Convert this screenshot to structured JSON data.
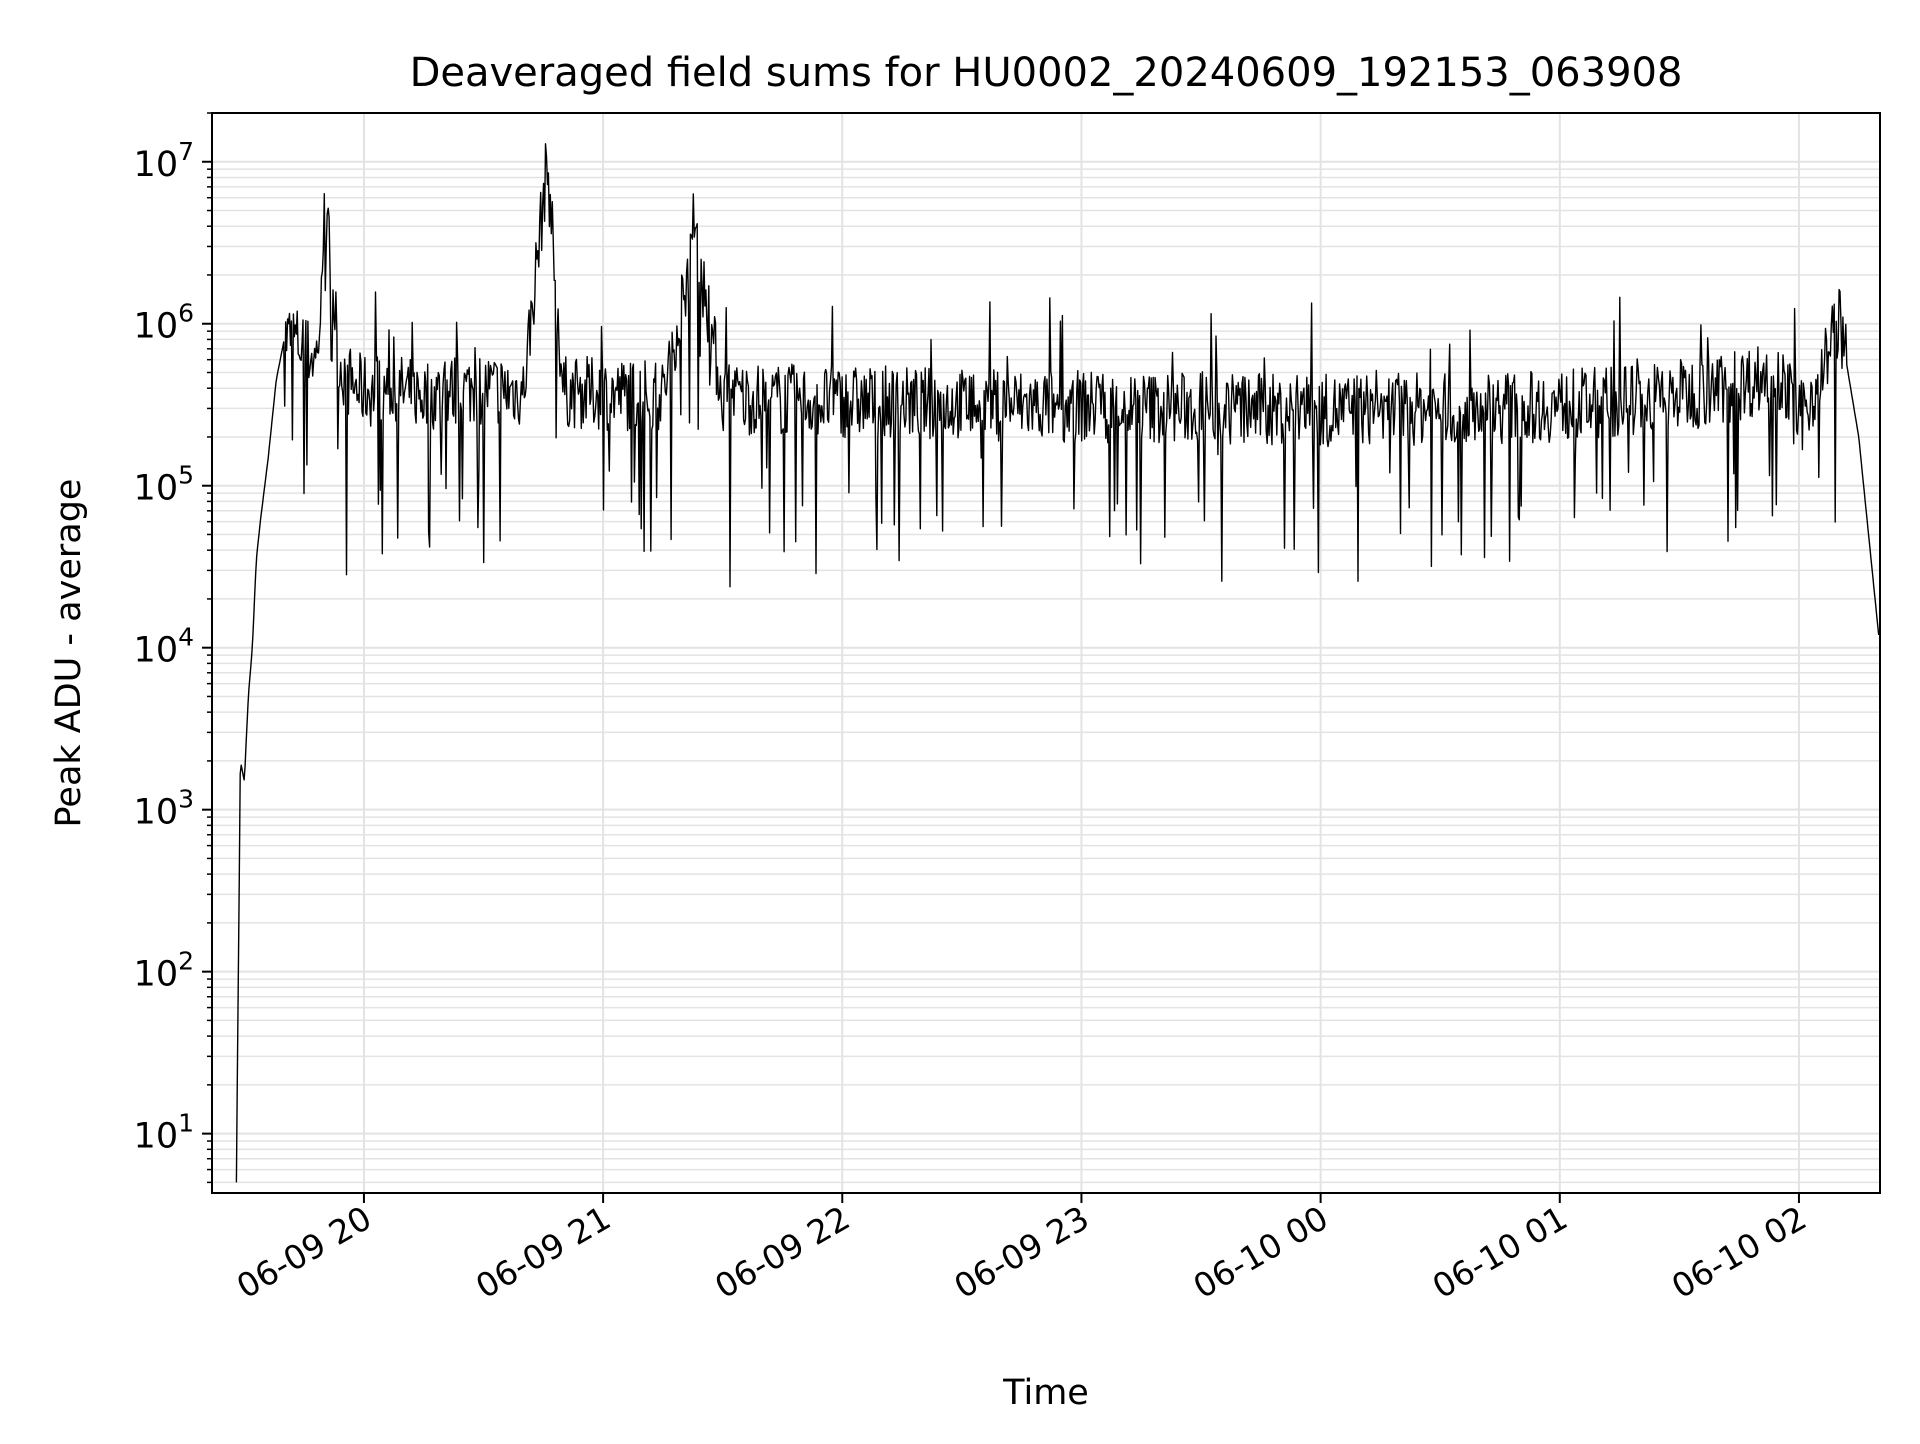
{
  "chart_data": {
    "type": "line",
    "title": "Deaveraged field sums for HU0002_20240609_192153_063908",
    "xlabel": "Time",
    "ylabel": "Peak ADU - average",
    "yscale": "log",
    "ylim": [
      4.3,
      20000000
    ],
    "xlim": [
      "2024-06-09 19:21:53",
      "2024-06-10 02:20:20"
    ],
    "grid": "major and minor",
    "x_ticks": [
      {
        "label": "06-09 20",
        "value": "2024-06-09 20:00"
      },
      {
        "label": "06-09 21",
        "value": "2024-06-09 21:00"
      },
      {
        "label": "06-09 22",
        "value": "2024-06-09 22:00"
      },
      {
        "label": "06-09 23",
        "value": "2024-06-09 23:00"
      },
      {
        "label": "06-10 00",
        "value": "2024-06-10 00:00"
      },
      {
        "label": "06-10 01",
        "value": "2024-06-10 01:00"
      },
      {
        "label": "06-10 02",
        "value": "2024-06-10 02:00"
      }
    ],
    "y_ticks": [
      {
        "base": "10",
        "exp": "1",
        "value": 10
      },
      {
        "base": "10",
        "exp": "2",
        "value": 100
      },
      {
        "base": "10",
        "exp": "3",
        "value": 1000
      },
      {
        "base": "10",
        "exp": "4",
        "value": 10000
      },
      {
        "base": "10",
        "exp": "5",
        "value": 100000
      },
      {
        "base": "10",
        "exp": "6",
        "value": 1000000
      },
      {
        "base": "10",
        "exp": "7",
        "value": 10000000
      }
    ],
    "line_color": "#000000",
    "series": [
      {
        "x": [
          "2024-06-09 19:28",
          "2024-06-09 19:29",
          "2024-06-09 19:30",
          "2024-06-09 19:31",
          "2024-06-09 19:32",
          "2024-06-09 19:33",
          "2024-06-09 19:34",
          "2024-06-09 19:36",
          "2024-06-09 19:38",
          "2024-06-09 19:40",
          "2024-06-09 19:42",
          "2024-06-09 19:45",
          "2024-06-09 19:48",
          "2024-06-09 19:51",
          "2024-06-09 19:54",
          "2024-06-09 19:56",
          "2024-06-09 19:58",
          "2024-06-09 20:02",
          "2024-06-09 20:06",
          "2024-06-09 20:10",
          "2024-06-09 20:15",
          "2024-06-09 20:20",
          "2024-06-09 20:30",
          "2024-06-09 20:40",
          "2024-06-09 20:46",
          "2024-06-09 20:50",
          "2024-06-09 21:00",
          "2024-06-09 21:15",
          "2024-06-09 21:23",
          "2024-06-09 21:30",
          "2024-06-09 21:45",
          "2024-06-09 22:00",
          "2024-06-09 22:30",
          "2024-06-09 23:00",
          "2024-06-09 23:30",
          "2024-06-10 00:00",
          "2024-06-10 00:30",
          "2024-06-10 01:00",
          "2024-06-10 01:20",
          "2024-06-10 01:35",
          "2024-06-10 01:45",
          "2024-06-10 01:55",
          "2024-06-10 02:00",
          "2024-06-10 02:05",
          "2024-06-10 02:10",
          "2024-06-10 02:15",
          "2024-06-10 02:20"
        ],
        "values": [
          5,
          2000,
          1500,
          5000,
          10000,
          35000,
          60000,
          150000,
          450000,
          800000,
          850000,
          700000,
          600000,
          3500000,
          550000,
          450000,
          400000,
          380000,
          400000,
          380000,
          360000,
          380000,
          400000,
          380000,
          10000000,
          380000,
          370000,
          360000,
          3500000,
          350000,
          340000,
          330000,
          320000,
          310000,
          300000,
          290000,
          300000,
          310000,
          340000,
          380000,
          420000,
          500000,
          250000,
          450000,
          1100000,
          200000,
          12000
        ]
      }
    ]
  }
}
